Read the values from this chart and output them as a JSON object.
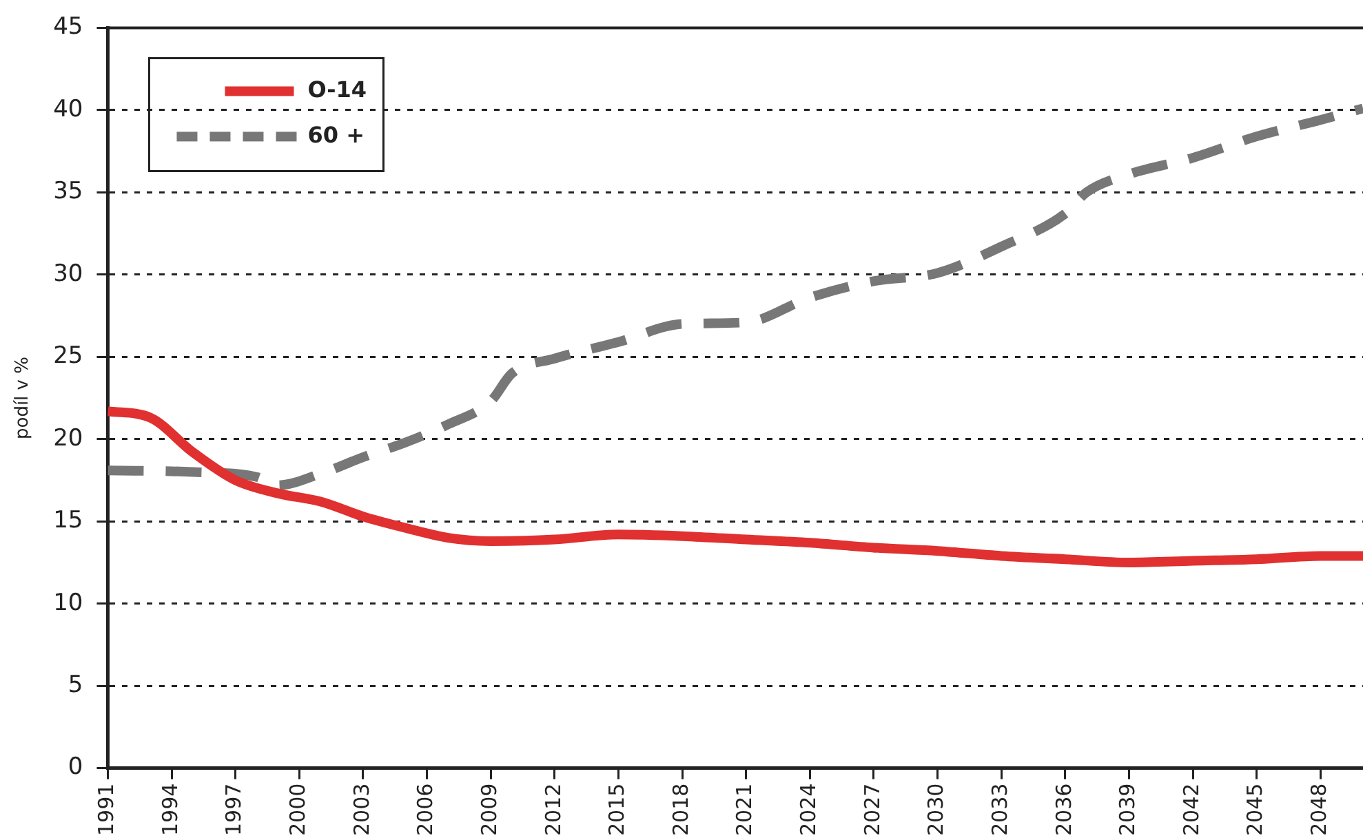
{
  "chart_data": {
    "type": "line",
    "ylabel": "podíl v %",
    "xlim": [
      1991,
      2050
    ],
    "xticks": [
      1991,
      1994,
      1997,
      2000,
      2003,
      2006,
      2009,
      2012,
      2015,
      2018,
      2021,
      2024,
      2027,
      2030,
      2033,
      2036,
      2039,
      2042,
      2045,
      2048
    ],
    "ylim": [
      0,
      45
    ],
    "yticks": [
      0,
      5,
      10,
      15,
      20,
      25,
      30,
      35,
      40,
      45
    ],
    "grid": "y",
    "legend": "top left",
    "marker": "none",
    "series": [
      {
        "name": "O-14",
        "color": "#e03030",
        "line_style": "solid",
        "x": [
          1991,
          1993,
          1995,
          1997,
          1999,
          2001,
          2003,
          2005,
          2007,
          2009,
          2012,
          2015,
          2018,
          2021,
          2024,
          2027,
          2030,
          2033,
          2036,
          2039,
          2042,
          2045,
          2048,
          2050
        ],
        "values": [
          21.7,
          21.3,
          19.2,
          17.5,
          16.7,
          16.2,
          15.3,
          14.6,
          14.0,
          13.8,
          13.9,
          14.2,
          14.1,
          13.9,
          13.7,
          13.4,
          13.2,
          12.9,
          12.7,
          12.5,
          12.6,
          12.7,
          12.9,
          12.9
        ]
      },
      {
        "name": "60 +",
        "color": "#777777",
        "line_style": "dashed",
        "x": [
          1991,
          1995,
          1998,
          1999,
          2001,
          2003,
          2005,
          2007,
          2009,
          2010,
          2012,
          2015,
          2018,
          2021,
          2024,
          2027,
          2030,
          2033,
          2036,
          2037,
          2039,
          2042,
          2045,
          2048,
          2050
        ],
        "values": [
          18.1,
          18.0,
          17.7,
          17.2,
          17.9,
          18.9,
          19.8,
          20.9,
          22.3,
          24.0,
          24.9,
          25.9,
          27.0,
          27.1,
          28.6,
          29.6,
          30.1,
          31.7,
          33.7,
          35.0,
          36.1,
          37.1,
          38.4,
          39.4,
          40.1
        ]
      }
    ]
  }
}
